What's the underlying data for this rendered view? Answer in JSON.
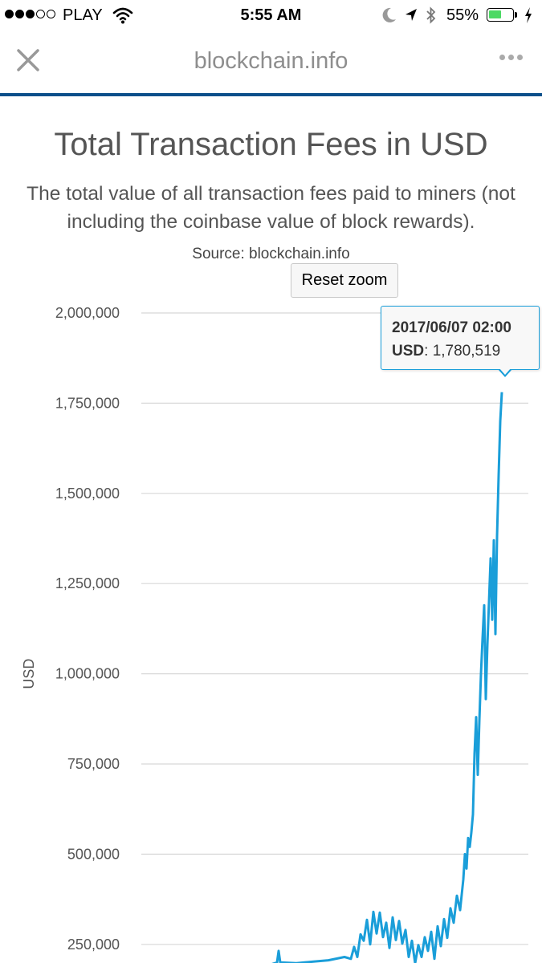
{
  "status_bar": {
    "carrier": "PLAY",
    "time": "5:55 AM",
    "battery_percent_text": "55%",
    "battery_level": 0.55,
    "signal_bars_filled": 3,
    "signal_bars_total": 5
  },
  "browser": {
    "url": "blockchain.info",
    "close_icon": "close-icon",
    "more_icon": "more-icon"
  },
  "chart_data": {
    "type": "line",
    "title": "Total Transaction Fees in USD",
    "subtitle": "The total value of all transaction fees paid to miners (not including the coinbase value of block rewards).",
    "source": "Source: blockchain.info",
    "reset_zoom_label": "Reset zoom",
    "ylabel": "USD",
    "ylim": [
      0,
      2000000
    ],
    "yticks": [
      "250,000",
      "500,000",
      "750,000",
      "1,000,000",
      "1,250,000",
      "1,500,000",
      "1,750,000",
      "2,000,000"
    ],
    "ytick_values": [
      250000,
      500000,
      750000,
      1000000,
      1250000,
      1500000,
      1750000,
      2000000
    ],
    "grid": true,
    "series_color": "#1a9ed9",
    "tooltip": {
      "date": "2017/06/07 02:00",
      "series": "USD",
      "value_text": "1,780,519",
      "value": 1780519
    },
    "series": [
      {
        "values": [
          [
            0.0,
            180000
          ],
          [
            0.05,
            182000
          ],
          [
            0.1,
            179000
          ],
          [
            0.15,
            185000
          ],
          [
            0.2,
            183000
          ],
          [
            0.25,
            188000
          ],
          [
            0.29,
            200000
          ],
          [
            0.295,
            232000
          ],
          [
            0.3,
            200000
          ],
          [
            0.35,
            198000
          ],
          [
            0.4,
            202000
          ],
          [
            0.45,
            206000
          ],
          [
            0.5,
            215000
          ],
          [
            0.52,
            210000
          ],
          [
            0.53,
            243000
          ],
          [
            0.54,
            215000
          ],
          [
            0.55,
            278000
          ],
          [
            0.56,
            260000
          ],
          [
            0.57,
            318000
          ],
          [
            0.58,
            250000
          ],
          [
            0.59,
            340000
          ],
          [
            0.6,
            280000
          ],
          [
            0.61,
            338000
          ],
          [
            0.62,
            270000
          ],
          [
            0.63,
            310000
          ],
          [
            0.64,
            240000
          ],
          [
            0.65,
            325000
          ],
          [
            0.66,
            262000
          ],
          [
            0.67,
            315000
          ],
          [
            0.68,
            252000
          ],
          [
            0.69,
            290000
          ],
          [
            0.7,
            215000
          ],
          [
            0.71,
            260000
          ],
          [
            0.72,
            198000
          ],
          [
            0.73,
            248000
          ],
          [
            0.74,
            215000
          ],
          [
            0.75,
            270000
          ],
          [
            0.76,
            232000
          ],
          [
            0.77,
            285000
          ],
          [
            0.78,
            210000
          ],
          [
            0.79,
            300000
          ],
          [
            0.8,
            245000
          ],
          [
            0.81,
            320000
          ],
          [
            0.82,
            268000
          ],
          [
            0.83,
            350000
          ],
          [
            0.84,
            310000
          ],
          [
            0.85,
            385000
          ],
          [
            0.86,
            345000
          ],
          [
            0.87,
            430000
          ],
          [
            0.875,
            500000
          ],
          [
            0.88,
            460000
          ],
          [
            0.885,
            545000
          ],
          [
            0.89,
            520000
          ],
          [
            0.895,
            560000
          ],
          [
            0.9,
            610000
          ],
          [
            0.905,
            780000
          ],
          [
            0.91,
            880000
          ],
          [
            0.915,
            720000
          ],
          [
            0.92,
            870000
          ],
          [
            0.925,
            1000000
          ],
          [
            0.93,
            1100000
          ],
          [
            0.935,
            1190000
          ],
          [
            0.94,
            930000
          ],
          [
            0.945,
            1080000
          ],
          [
            0.95,
            1200000
          ],
          [
            0.955,
            1320000
          ],
          [
            0.96,
            1150000
          ],
          [
            0.965,
            1370000
          ],
          [
            0.97,
            1110000
          ],
          [
            0.975,
            1380000
          ],
          [
            0.98,
            1550000
          ],
          [
            0.985,
            1700000
          ],
          [
            0.99,
            1780519
          ]
        ]
      }
    ]
  }
}
